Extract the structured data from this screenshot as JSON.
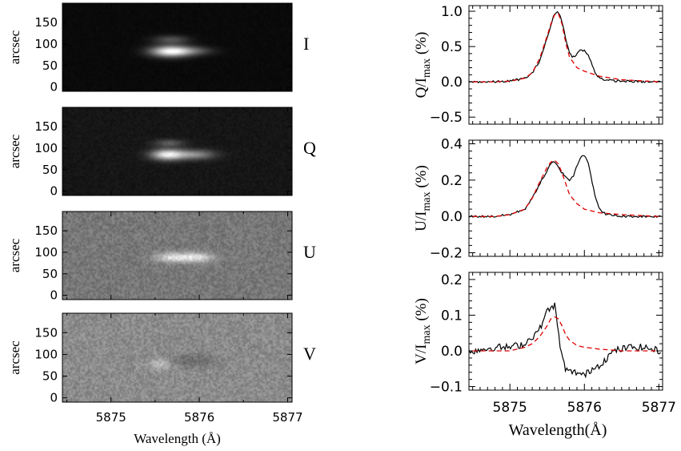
{
  "chart_data": [
    {
      "type": "heatmap",
      "panel": "I",
      "panel_label": "I",
      "ylabel": "arcsec",
      "yticks": [
        0,
        50,
        100,
        150
      ],
      "xticks": [
        "5875",
        "5876",
        "5877"
      ],
      "xlabel": "Wavelength (Å)",
      "xlim": [
        5874.45,
        5877.05
      ],
      "ylim": [
        -10,
        195
      ],
      "blobs": [
        {
          "x": 5875.68,
          "y": 83,
          "sx": 0.16,
          "sy": 9,
          "amp": 1.0
        },
        {
          "x": 5875.68,
          "y": 110,
          "sx": 0.14,
          "sy": 7,
          "amp": 0.3
        },
        {
          "x": 5875.96,
          "y": 84,
          "sx": 0.15,
          "sy": 7,
          "amp": 0.25
        }
      ]
    },
    {
      "type": "heatmap",
      "panel": "Q",
      "panel_label": "Q",
      "ylabel": "arcsec",
      "yticks": [
        0,
        50,
        100,
        150
      ],
      "xticks": [
        "5875",
        "5876",
        "5877"
      ],
      "xlim": [
        5874.45,
        5877.05
      ],
      "ylim": [
        -10,
        195
      ],
      "blobs": [
        {
          "x": 5875.64,
          "y": 85,
          "sx": 0.13,
          "sy": 9,
          "amp": 0.9
        },
        {
          "x": 5875.95,
          "y": 85,
          "sx": 0.16,
          "sy": 8,
          "amp": 0.5
        },
        {
          "x": 5875.66,
          "y": 112,
          "sx": 0.12,
          "sy": 6,
          "amp": 0.3
        }
      ]
    },
    {
      "type": "heatmap",
      "panel": "U",
      "panel_label": "U",
      "ylabel": "arcsec",
      "yticks": [
        0,
        50,
        100,
        150
      ],
      "xticks": [
        "5875",
        "5876",
        "5877"
      ],
      "xlim": [
        5874.45,
        5877.05
      ],
      "ylim": [
        -10,
        195
      ],
      "blobs": [
        {
          "x": 5875.7,
          "y": 88,
          "sx": 0.14,
          "sy": 8,
          "amp": 0.75
        },
        {
          "x": 5875.98,
          "y": 88,
          "sx": 0.13,
          "sy": 8,
          "amp": 0.7
        }
      ]
    },
    {
      "type": "heatmap",
      "panel": "V",
      "panel_label": "V",
      "ylabel": "arcsec",
      "yticks": [
        0,
        50,
        100,
        150
      ],
      "xticks": [
        "5875",
        "5876",
        "5877"
      ],
      "xlim": [
        5874.45,
        5877.05
      ],
      "ylim": [
        -10,
        195
      ],
      "blobs": [
        {
          "x": 5875.55,
          "y": 78,
          "sx": 0.1,
          "sy": 8,
          "amp": 0.45
        },
        {
          "x": 5875.9,
          "y": 85,
          "sx": 0.2,
          "sy": 10,
          "amp": -0.3
        }
      ]
    },
    {
      "type": "line",
      "panel": "Q",
      "ylabel": "Q/I",
      "ylabel_sub": "max",
      "ylabel_unit": "(%)",
      "xlim": [
        5874.45,
        5877.05
      ],
      "ylim": [
        -0.6,
        1.08
      ],
      "yticks": [
        "1.0",
        "0.5",
        "0.0",
        "−0.5"
      ],
      "ytick_values": [
        1.0,
        0.5,
        0.0,
        -0.5
      ],
      "xticks": [
        "5875",
        "5876",
        "5877"
      ],
      "series": [
        {
          "color": "#000000",
          "dash": "none",
          "x": [
            5874.5,
            5874.8,
            5875.0,
            5875.2,
            5875.3,
            5875.4,
            5875.5,
            5875.55,
            5875.6,
            5875.65,
            5875.7,
            5875.75,
            5875.8,
            5875.85,
            5875.9,
            5875.95,
            5876.0,
            5876.05,
            5876.1,
            5876.15,
            5876.2,
            5876.3,
            5876.5,
            5876.8,
            5877.0
          ],
          "y": [
            0.0,
            0.0,
            0.01,
            0.05,
            0.12,
            0.3,
            0.62,
            0.8,
            0.97,
            1.0,
            0.85,
            0.62,
            0.4,
            0.35,
            0.4,
            0.45,
            0.44,
            0.38,
            0.25,
            0.12,
            0.06,
            0.02,
            0.01,
            0.0,
            0.0
          ]
        },
        {
          "color": "#e00000",
          "dash": "6,4",
          "x": [
            5874.5,
            5874.8,
            5875.0,
            5875.2,
            5875.3,
            5875.4,
            5875.5,
            5875.55,
            5875.6,
            5875.65,
            5875.7,
            5875.75,
            5875.8,
            5875.9,
            5876.0,
            5876.2,
            5876.5,
            5877.0
          ],
          "y": [
            0.0,
            0.0,
            0.01,
            0.05,
            0.13,
            0.33,
            0.65,
            0.82,
            0.95,
            0.97,
            0.82,
            0.55,
            0.35,
            0.2,
            0.15,
            0.08,
            0.03,
            0.0
          ]
        }
      ]
    },
    {
      "type": "line",
      "panel": "U",
      "ylabel": "U/I",
      "ylabel_sub": "max",
      "ylabel_unit": "(%)",
      "xlim": [
        5874.45,
        5877.05
      ],
      "ylim": [
        -0.22,
        0.42
      ],
      "yticks": [
        "0.4",
        "0.2",
        "0.0",
        "−0.2"
      ],
      "ytick_values": [
        0.4,
        0.2,
        0.0,
        -0.2
      ],
      "xticks": [
        "5875",
        "5876",
        "5877"
      ],
      "series": [
        {
          "color": "#000000",
          "dash": "none",
          "x": [
            5874.5,
            5874.8,
            5875.0,
            5875.2,
            5875.3,
            5875.4,
            5875.5,
            5875.55,
            5875.6,
            5875.65,
            5875.7,
            5875.75,
            5875.8,
            5875.85,
            5875.9,
            5875.95,
            5876.0,
            5876.05,
            5876.1,
            5876.15,
            5876.2,
            5876.3,
            5876.5,
            5876.8,
            5877.0
          ],
          "y": [
            0.0,
            0.0,
            0.01,
            0.04,
            0.1,
            0.18,
            0.25,
            0.29,
            0.3,
            0.27,
            0.24,
            0.22,
            0.2,
            0.22,
            0.28,
            0.33,
            0.34,
            0.3,
            0.2,
            0.1,
            0.04,
            0.01,
            0.0,
            0.0,
            0.0
          ]
        },
        {
          "color": "#e00000",
          "dash": "6,4",
          "x": [
            5874.5,
            5874.8,
            5875.0,
            5875.2,
            5875.3,
            5875.4,
            5875.5,
            5875.55,
            5875.6,
            5875.65,
            5875.7,
            5875.75,
            5875.8,
            5875.9,
            5876.0,
            5876.2,
            5876.5,
            5877.0
          ],
          "y": [
            0.0,
            0.0,
            0.01,
            0.04,
            0.1,
            0.19,
            0.27,
            0.3,
            0.31,
            0.29,
            0.24,
            0.18,
            0.12,
            0.07,
            0.04,
            0.02,
            0.01,
            0.0
          ]
        }
      ]
    },
    {
      "type": "line",
      "panel": "V",
      "ylabel": "V/I",
      "ylabel_sub": "max",
      "ylabel_unit": "(%)",
      "xlabel": "Wavelength(Å)",
      "xlim": [
        5874.45,
        5877.05
      ],
      "ylim": [
        -0.11,
        0.22
      ],
      "yticks": [
        "0.2",
        "0.1",
        "0.0",
        "−0.1"
      ],
      "ytick_values": [
        0.2,
        0.1,
        0.0,
        -0.1
      ],
      "xticks": [
        "5875",
        "5876",
        "5877"
      ],
      "series": [
        {
          "color": "#000000",
          "dash": "none",
          "x": [
            5874.5,
            5874.8,
            5875.0,
            5875.2,
            5875.3,
            5875.4,
            5875.45,
            5875.5,
            5875.55,
            5875.6,
            5875.65,
            5875.7,
            5875.75,
            5875.8,
            5875.9,
            5876.0,
            5876.1,
            5876.2,
            5876.3,
            5876.4,
            5876.6,
            5876.8,
            5877.0
          ],
          "y": [
            0.0,
            0.01,
            0.01,
            0.02,
            0.04,
            0.06,
            0.09,
            0.11,
            0.12,
            0.13,
            0.05,
            -0.02,
            -0.05,
            -0.06,
            -0.06,
            -0.07,
            -0.05,
            -0.04,
            -0.02,
            0.0,
            0.01,
            0.01,
            0.0
          ]
        },
        {
          "color": "#e00000",
          "dash": "6,4",
          "x": [
            5874.5,
            5874.8,
            5875.0,
            5875.2,
            5875.3,
            5875.4,
            5875.5,
            5875.55,
            5875.6,
            5875.65,
            5875.7,
            5875.75,
            5875.8,
            5875.9,
            5876.0,
            5876.2,
            5876.5,
            5877.0
          ],
          "y": [
            0.0,
            0.0,
            0.0,
            0.01,
            0.02,
            0.04,
            0.07,
            0.09,
            0.095,
            0.09,
            0.07,
            0.045,
            0.03,
            0.015,
            0.01,
            0.005,
            0.0,
            0.0
          ]
        }
      ]
    }
  ]
}
